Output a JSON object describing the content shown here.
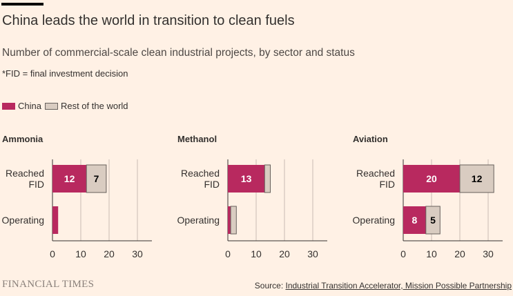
{
  "title": "China leads the world in transition to clean fuels",
  "subtitle": "Number of commercial-scale clean industrial projects, by sector and status",
  "note": "*FID = final investment decision",
  "legend": {
    "china": "China",
    "rest": "Rest of the world"
  },
  "footer": {
    "logo": "FINANCIAL TIMES",
    "source_label": "Source: ",
    "source_link": "Industrial Transition Accelerator, Mission Possible Partnership"
  },
  "colors": {
    "china": "#B8295F",
    "rest": "#D9CCC1",
    "rest_border": "#66605C",
    "grid": "#C9BCB2",
    "axis": "#33302E",
    "background": "#FFF1E5"
  },
  "chart_data": {
    "type": "bar",
    "orientation": "horizontal",
    "stacked": true,
    "categories": [
      [
        "Reached",
        "FID"
      ],
      [
        "Operating"
      ]
    ],
    "x_ticks": [
      "0",
      "10",
      "20",
      "30"
    ],
    "xlim": [
      0,
      35
    ],
    "panels": [
      {
        "name": "Ammonia",
        "series": [
          {
            "name": "China",
            "values": [
              12,
              2
            ],
            "labels": [
              "12",
              ""
            ]
          },
          {
            "name": "Rest of the world",
            "values": [
              7,
              0
            ],
            "labels": [
              "7",
              ""
            ]
          }
        ]
      },
      {
        "name": "Methanol",
        "series": [
          {
            "name": "China",
            "values": [
              13,
              1
            ],
            "labels": [
              "13",
              ""
            ]
          },
          {
            "name": "Rest of the world",
            "values": [
              2,
              2
            ],
            "labels": [
              "",
              ""
            ]
          }
        ]
      },
      {
        "name": "Aviation",
        "series": [
          {
            "name": "China",
            "values": [
              20,
              8
            ],
            "labels": [
              "20",
              "8"
            ]
          },
          {
            "name": "Rest of the world",
            "values": [
              12,
              5
            ],
            "labels": [
              "12",
              "5"
            ]
          }
        ]
      }
    ]
  }
}
